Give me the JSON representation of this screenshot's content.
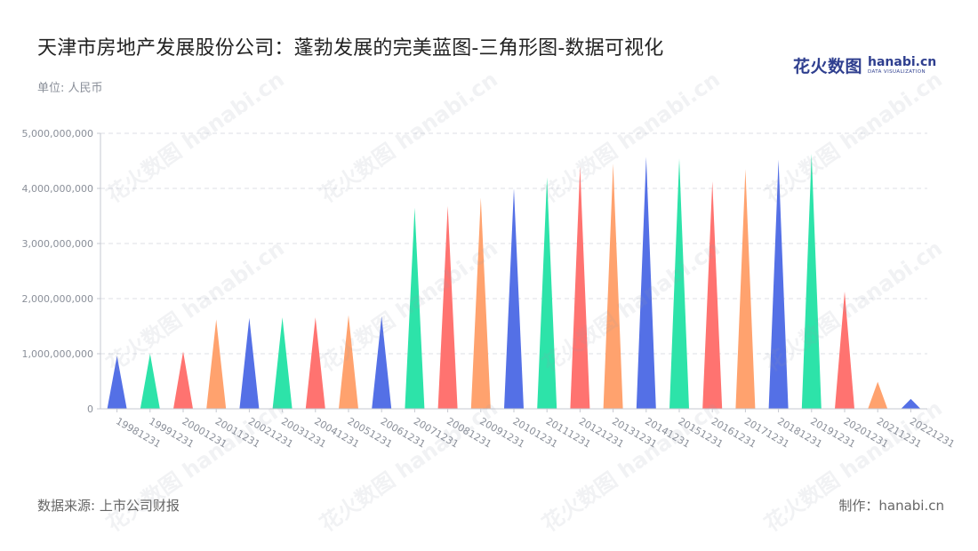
{
  "header": {
    "title": "天津市房地产发展股份公司：蓬勃发展的完美蓝图-三角形图-数据可视化",
    "subtitle": "单位: 人民币"
  },
  "brand": {
    "cn": "花火数图",
    "en": "hanabi.cn",
    "tag": "DATA VISUALIZATION"
  },
  "footer": {
    "source": "数据来源: 上市公司财报",
    "credit": "制作：hanabi.cn"
  },
  "watermark_text": "花火数图 hanabi.cn",
  "chart_data": {
    "type": "bar",
    "mark": "triangle",
    "title": "天津市房地产发展股份公司：蓬勃发展的完美蓝图-三角形图-数据可视化",
    "subtitle": "单位: 人民币",
    "xlabel": "",
    "ylabel": "",
    "ylim": [
      0,
      5000000000
    ],
    "yticks": [
      0,
      1000000000,
      2000000000,
      3000000000,
      4000000000,
      5000000000
    ],
    "ytick_labels": [
      "0",
      "1,000,000,000",
      "2,000,000,000",
      "3,000,000,000",
      "4,000,000,000",
      "5,000,000,000"
    ],
    "grid": true,
    "legend": "none",
    "categories": [
      "19981231",
      "19991231",
      "20001231",
      "20011231",
      "20021231",
      "20031231",
      "20041231",
      "20051231",
      "20061231",
      "20071231",
      "20081231",
      "20091231",
      "20101231",
      "20111231",
      "20121231",
      "20131231",
      "20141231",
      "20151231",
      "20161231",
      "20171231",
      "20181231",
      "20191231",
      "20201231",
      "20211231",
      "20221231"
    ],
    "values": [
      960000000,
      1000000000,
      1040000000,
      1620000000,
      1650000000,
      1660000000,
      1660000000,
      1700000000,
      1680000000,
      3650000000,
      3680000000,
      3830000000,
      4000000000,
      4200000000,
      4400000000,
      4450000000,
      4570000000,
      4540000000,
      4130000000,
      4350000000,
      4520000000,
      4630000000,
      2130000000,
      490000000,
      180000000
    ],
    "colors": [
      "#5470e6",
      "#2de3a9",
      "#ff7370",
      "#ffa26e"
    ]
  }
}
